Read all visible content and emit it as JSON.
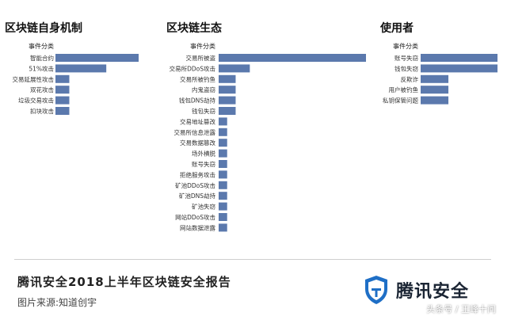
{
  "colors": {
    "bar": "#5b79ad",
    "brand": "#1f6fc6"
  },
  "chart_data": [
    {
      "type": "bar",
      "orientation": "horizontal",
      "title": "区块链自身机制",
      "category_header": "事件分类",
      "categories": [
        "智能合约",
        "51%攻击",
        "交易延展性攻击",
        "双花攻击",
        "垃圾交易攻击",
        "扣块攻击"
      ],
      "values": [
        18,
        11,
        3,
        3,
        3,
        3
      ]
    },
    {
      "type": "bar",
      "orientation": "horizontal",
      "title": "区块链生态",
      "category_header": "事件分类",
      "categories": [
        "交易所被盗",
        "交易所DDoS攻击",
        "交易所被钓鱼",
        "内鬼盗窃",
        "钱包DNS劫持",
        "钱包失窃",
        "交易地址篡改",
        "交易所信息泄露",
        "交易数据篡改",
        "场外横脱",
        "账号失窃",
        "拒绝服务攻击",
        "矿池DDoS攻击",
        "矿池DNS劫持",
        "矿池失窃",
        "网站DDoS攻击",
        "网站数据泄露"
      ],
      "values": [
        52,
        11,
        6,
        6,
        6,
        6,
        3,
        3,
        3,
        3,
        3,
        3,
        3,
        3,
        3,
        3,
        3
      ]
    },
    {
      "type": "bar",
      "orientation": "horizontal",
      "title": "使用者",
      "category_header": "事件分类",
      "categories": [
        "账号失窃",
        "钱包失窃",
        "反欺诈",
        "用户被钓鱼",
        "私钥保管问题"
      ],
      "values": [
        36,
        36,
        13,
        13,
        13
      ]
    }
  ],
  "footer": {
    "report_title": "腾讯安全2018上半年区块链安全报告",
    "source": "图片来源:知道创宇",
    "brand_name": "腾讯安全",
    "watermark": "头条号 / 王峰十问"
  }
}
